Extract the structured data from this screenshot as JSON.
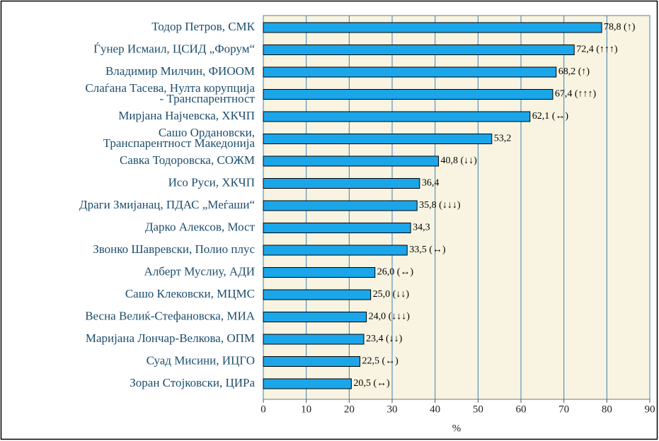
{
  "chart_data": {
    "type": "barh",
    "categories": [
      "Тодор Петров, СМК",
      "Ѓунер Исмаил, ЦСИД „Форум“",
      "Владимир Милчин, ФИООМ",
      "Слаѓана Тасева, Нулта корупција\n- Транспарентност",
      "Мирјана Најчевска, ХКЧП",
      "Сашо Ордановски,\nТранспарентност Македонија",
      "Савка Тодоровска, СОЖМ",
      "Исо Руси, ХКЧП",
      "Драги Змијанац, ПДАС „Меѓаши“",
      "Дарко Алексов, Мост",
      "Звонко Шавревски, Полио плус",
      "Алберт Муслиу, АДИ",
      "Сашо Клековски, МЦМС",
      "Весна Велиќ-Стефановска, МИА",
      "Маријана Лончар-Велкова, ОПМ",
      "Суад Мисини, ИЦГО",
      "Зоран Стојковски, ЦИРа"
    ],
    "values": [
      78.8,
      72.4,
      68.2,
      67.4,
      62.1,
      53.2,
      40.8,
      36.4,
      35.8,
      34.3,
      33.5,
      26.0,
      25.0,
      24.0,
      23.4,
      22.5,
      20.5
    ],
    "value_labels": [
      "78,8 (↑)",
      "72,4 (↑↑↑)",
      "68,2 (↑)",
      "67,4 (↑↑↑)",
      "62,1 (↔)",
      "53,2",
      "40,8 (↓↓)",
      "36,4",
      "35,8 (↓↓↓)",
      "34,3",
      "33,5 (↔)",
      "26,0 (↔)",
      "25,0 (↓↓)",
      "24,0 (↓↓↓)",
      "23,4 (↓↓)",
      "22,5 (↔)",
      "20,5 (↔)"
    ],
    "color": "#1ba6ea",
    "xlim": [
      0,
      90
    ],
    "xticks": [
      0,
      10,
      20,
      30,
      40,
      50,
      60,
      70,
      80,
      90
    ],
    "xlabel": "%",
    "grid": true
  }
}
